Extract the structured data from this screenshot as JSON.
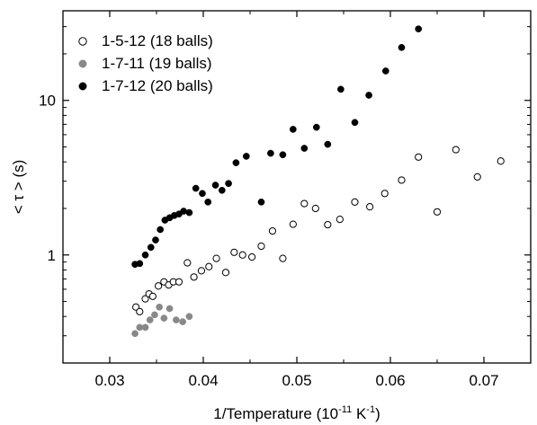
{
  "chart_data": {
    "type": "scatter",
    "xlabel": {
      "main": "1/Temperature (10",
      "exp1": "-11",
      "mid": " K",
      "exp2": "-1",
      "end": ")"
    },
    "ylabel": "< τ > (s)",
    "xlim": [
      0.025,
      0.075
    ],
    "ylim": [
      0.2,
      38
    ],
    "yscale": "log",
    "x_ticks": [
      {
        "value": 0.03,
        "label": "0.03"
      },
      {
        "value": 0.04,
        "label": "0.04"
      },
      {
        "value": 0.05,
        "label": "0.05"
      },
      {
        "value": 0.06,
        "label": "0.06"
      },
      {
        "value": 0.07,
        "label": "0.07"
      }
    ],
    "y_ticks": [
      {
        "value": 1,
        "label": "1"
      },
      {
        "value": 10,
        "label": "10"
      }
    ],
    "grid": false,
    "legend_position": "top-left",
    "series": [
      {
        "name": "1-5-12 (18 balls)",
        "marker": "open-circle",
        "color": "#000000",
        "points": [
          [
            0.0328,
            0.46
          ],
          [
            0.0332,
            0.43
          ],
          [
            0.0338,
            0.52
          ],
          [
            0.0342,
            0.56
          ],
          [
            0.0346,
            0.54
          ],
          [
            0.0352,
            0.63
          ],
          [
            0.0358,
            0.67
          ],
          [
            0.0363,
            0.64
          ],
          [
            0.0368,
            0.67
          ],
          [
            0.0374,
            0.67
          ],
          [
            0.0383,
            0.89
          ],
          [
            0.039,
            0.72
          ],
          [
            0.0398,
            0.79
          ],
          [
            0.0406,
            0.84
          ],
          [
            0.0414,
            0.95
          ],
          [
            0.0424,
            0.77
          ],
          [
            0.0433,
            1.04
          ],
          [
            0.0442,
            1.0
          ],
          [
            0.0452,
            0.97
          ],
          [
            0.0462,
            1.14
          ],
          [
            0.0474,
            1.43
          ],
          [
            0.0485,
            0.95
          ],
          [
            0.0496,
            1.58
          ],
          [
            0.0508,
            2.15
          ],
          [
            0.052,
            2.0
          ],
          [
            0.0533,
            1.57
          ],
          [
            0.0546,
            1.7
          ],
          [
            0.0562,
            2.2
          ],
          [
            0.0578,
            2.05
          ],
          [
            0.0594,
            2.5
          ],
          [
            0.0612,
            3.05
          ],
          [
            0.063,
            4.3
          ],
          [
            0.065,
            1.9
          ],
          [
            0.067,
            4.8
          ],
          [
            0.0693,
            3.2
          ],
          [
            0.0718,
            4.05
          ]
        ]
      },
      {
        "name": "1-7-11 (19 balls)",
        "marker": "filled-circle",
        "color": "#888888",
        "points": [
          [
            0.0327,
            0.31
          ],
          [
            0.0332,
            0.34
          ],
          [
            0.0338,
            0.34
          ],
          [
            0.0343,
            0.38
          ],
          [
            0.0348,
            0.41
          ],
          [
            0.0353,
            0.46
          ],
          [
            0.0358,
            0.39
          ],
          [
            0.0364,
            0.45
          ],
          [
            0.0371,
            0.38
          ],
          [
            0.0378,
            0.37
          ],
          [
            0.0385,
            0.4
          ]
        ]
      },
      {
        "name": "1-7-12 (20 balls)",
        "marker": "filled-circle",
        "color": "#000000",
        "points": [
          [
            0.0327,
            0.87
          ],
          [
            0.0332,
            0.88
          ],
          [
            0.0338,
            1.0
          ],
          [
            0.0344,
            1.12
          ],
          [
            0.0349,
            1.25
          ],
          [
            0.0354,
            1.46
          ],
          [
            0.0359,
            1.68
          ],
          [
            0.0364,
            1.74
          ],
          [
            0.0369,
            1.8
          ],
          [
            0.0374,
            1.84
          ],
          [
            0.0379,
            1.92
          ],
          [
            0.0385,
            1.88
          ],
          [
            0.0392,
            2.7
          ],
          [
            0.0399,
            2.5
          ],
          [
            0.0405,
            2.2
          ],
          [
            0.0413,
            2.83
          ],
          [
            0.042,
            2.62
          ],
          [
            0.0427,
            2.9
          ],
          [
            0.0435,
            3.95
          ],
          [
            0.0446,
            4.35
          ],
          [
            0.0462,
            2.2
          ],
          [
            0.0472,
            4.55
          ],
          [
            0.0485,
            4.45
          ],
          [
            0.0496,
            6.5
          ],
          [
            0.0508,
            4.9
          ],
          [
            0.0521,
            6.7
          ],
          [
            0.0533,
            5.2
          ],
          [
            0.0547,
            11.8
          ],
          [
            0.0562,
            7.2
          ],
          [
            0.0577,
            10.8
          ],
          [
            0.0595,
            15.5
          ],
          [
            0.0612,
            22.0
          ],
          [
            0.063,
            29.0
          ]
        ]
      }
    ]
  }
}
